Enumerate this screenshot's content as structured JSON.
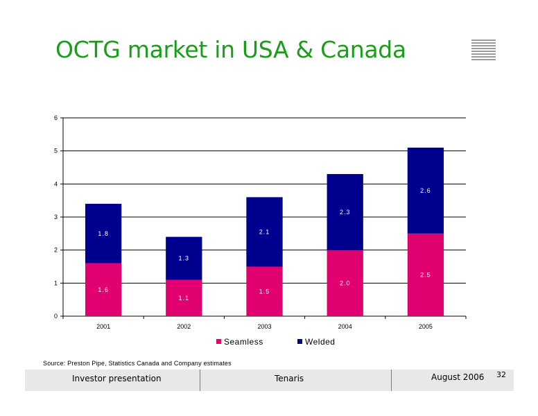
{
  "slide": {
    "title": "OCTG market in USA & Canada",
    "source": "Source: Preston Pipe, Statistics Canada and Company estimates",
    "footer": {
      "left": "Investor  presentation",
      "center": "Tenaris",
      "right": "August 2006"
    },
    "page_number": "32"
  },
  "chart_data": {
    "type": "bar",
    "stacked": true,
    "categories": [
      "2001",
      "2002",
      "2003",
      "2004",
      "2005"
    ],
    "series": [
      {
        "name": "Seamless",
        "values": [
          1.6,
          1.1,
          1.5,
          2.0,
          2.5
        ],
        "color": "#e0006f"
      },
      {
        "name": "Welded",
        "values": [
          1.8,
          1.3,
          2.1,
          2.3,
          2.6
        ],
        "color": "#00008e"
      }
    ],
    "ylim": [
      0,
      6
    ],
    "yticks": [
      0,
      1,
      2,
      3,
      4,
      5,
      6
    ],
    "grid": true,
    "legend_position": "bottom"
  }
}
